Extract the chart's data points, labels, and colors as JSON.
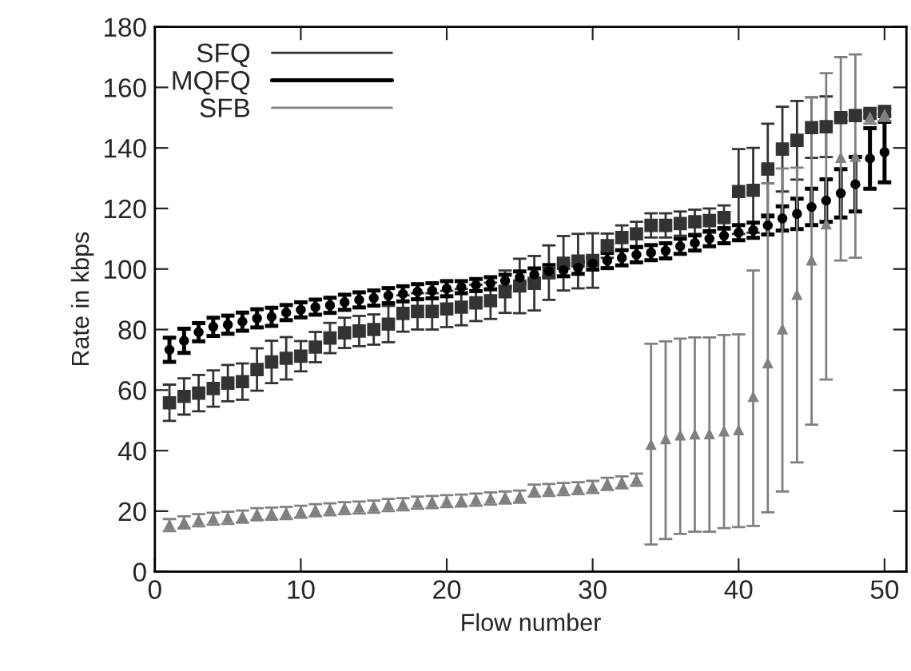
{
  "chart_data": {
    "type": "scatter",
    "xlabel": "Flow number",
    "ylabel": "Rate in kbps",
    "x": [
      1,
      2,
      3,
      4,
      5,
      6,
      7,
      8,
      9,
      10,
      11,
      12,
      13,
      14,
      15,
      16,
      17,
      18,
      19,
      20,
      21,
      22,
      23,
      24,
      25,
      26,
      27,
      28,
      29,
      30,
      31,
      32,
      33,
      34,
      35,
      36,
      37,
      38,
      39,
      40,
      41,
      42,
      43,
      44,
      45,
      46,
      47,
      48,
      49,
      50
    ],
    "xlim": [
      0,
      51.5
    ],
    "xticks": [
      0,
      10,
      20,
      30,
      40,
      50
    ],
    "ylim": [
      0,
      180
    ],
    "yticks": [
      0,
      20,
      40,
      60,
      80,
      100,
      120,
      140,
      160,
      180
    ],
    "legend": "top left",
    "series": [
      {
        "name": "SFQ",
        "color": "#333333",
        "marker": "square",
        "values": [
          55.8,
          57.9,
          59,
          60.5,
          62.3,
          62.8,
          66.8,
          69.3,
          70.5,
          71.2,
          74.2,
          77.2,
          78.9,
          79.5,
          80,
          81.8,
          85.3,
          86,
          86,
          86.8,
          87.4,
          88.8,
          89.5,
          92.5,
          94.4,
          95.3,
          98.8,
          101.9,
          102.6,
          102.8,
          107.7,
          110.4,
          111.6,
          114.4,
          114.4,
          115,
          115.6,
          116,
          117,
          125.6,
          126,
          133,
          139.6,
          142.5,
          146.7,
          147,
          150,
          150.7,
          151.4,
          152
        ],
        "errors": [
          6,
          6,
          6,
          6,
          6,
          6,
          7,
          7,
          7,
          5,
          5,
          5,
          5,
          5,
          5,
          6,
          6,
          6,
          6,
          6,
          6,
          6,
          6,
          7,
          9,
          9,
          9,
          9,
          9,
          9,
          4,
          4,
          4,
          4,
          4,
          4,
          4,
          4,
          4,
          14,
          14,
          15,
          14,
          13,
          10,
          10,
          1,
          1,
          1,
          1
        ]
      },
      {
        "name": "MQFQ",
        "color": "#000000",
        "marker": "circle",
        "values": [
          73.3,
          76.3,
          79.1,
          80.9,
          81.6,
          82.6,
          83.7,
          84.2,
          85.6,
          86.5,
          87.4,
          88,
          89,
          89.8,
          90.4,
          91.2,
          91.8,
          92.5,
          92.8,
          93.5,
          94,
          94.7,
          95.3,
          96.1,
          97.2,
          98.2,
          99.3,
          99.6,
          100.4,
          101.8,
          102.8,
          103.7,
          104.7,
          105.4,
          106,
          107.5,
          108.6,
          110,
          111,
          112,
          112.8,
          114.4,
          116.7,
          118.2,
          120.5,
          122.6,
          125,
          128,
          136.5,
          138.6
        ],
        "errors": [
          4,
          4,
          3,
          3,
          3,
          3,
          3,
          3,
          2.5,
          2.5,
          2.5,
          2.5,
          2.5,
          2.5,
          2.5,
          2.5,
          2.5,
          2.5,
          2.5,
          2.5,
          2,
          2,
          2,
          2,
          2,
          2,
          2,
          2,
          2,
          2,
          2.5,
          2.5,
          2.5,
          2.5,
          2.5,
          2.5,
          2.5,
          2.5,
          2.5,
          2.5,
          2.5,
          3,
          4,
          5,
          6,
          7,
          8,
          9,
          10,
          10
        ]
      },
      {
        "name": "SFB",
        "color": "#808080",
        "marker": "triangle",
        "values": [
          15.4,
          16.3,
          17,
          17.5,
          17.8,
          18.2,
          19,
          19.2,
          19.4,
          19.8,
          20.3,
          20.6,
          21,
          21.2,
          21.5,
          22,
          22.3,
          22.8,
          23,
          23.3,
          23.5,
          23.8,
          24.2,
          24.5,
          24.8,
          26.8,
          27,
          27.3,
          27.6,
          28,
          29,
          29.5,
          30.4,
          41.9,
          43.7,
          45,
          45.3,
          45.4,
          46.3,
          46.7,
          57.7,
          68.8,
          80,
          91.4,
          102.8,
          114.7,
          136.7,
          137,
          150,
          150.9
        ],
        "errors": [
          2,
          2,
          2,
          2,
          2,
          2,
          2,
          2,
          2,
          2,
          2,
          2,
          2,
          2,
          2,
          2,
          2,
          2,
          2,
          2,
          2,
          2,
          2,
          2,
          2,
          2,
          2,
          2,
          2,
          2,
          2,
          2,
          2,
          [
            9,
            75.3
          ],
          [
            10.8,
            76.1
          ],
          [
            12.5,
            77
          ],
          [
            13.2,
            77.4
          ],
          [
            13.2,
            77.4
          ],
          [
            14.4,
            78.2
          ],
          [
            14.7,
            78.4
          ],
          [
            15.1,
            99.5
          ],
          [
            19.6,
            128.3
          ],
          [
            26.5,
            133.2
          ],
          [
            36.1,
            133.5
          ],
          [
            48.6,
            156.7
          ],
          [
            63.5,
            164.7
          ],
          [
            102.8,
            170
          ],
          [
            103.7,
            170.9
          ],
          2,
          2
        ]
      }
    ]
  }
}
